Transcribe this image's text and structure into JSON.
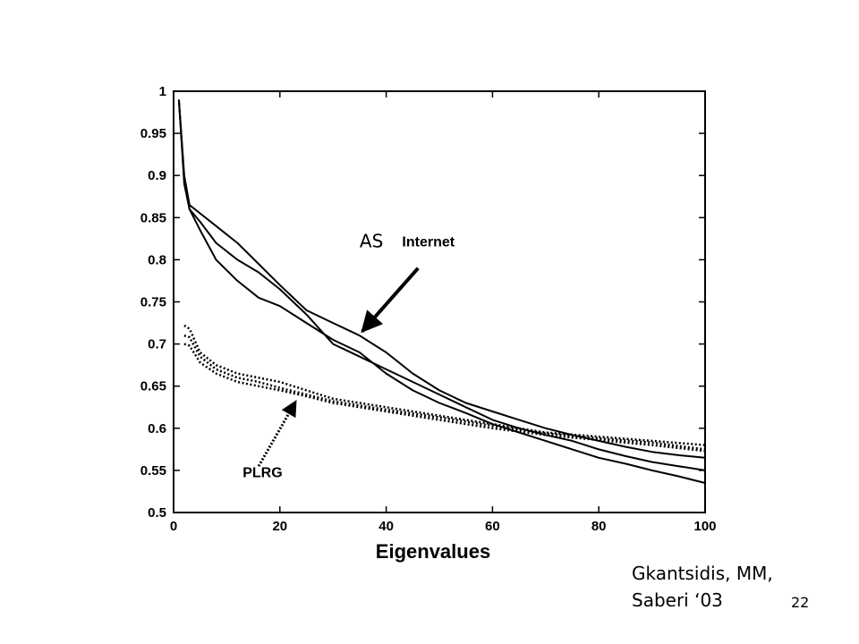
{
  "chart_data": {
    "type": "line",
    "title": "",
    "xlabel": "Eigenvalues",
    "ylabel": "",
    "xlim": [
      0,
      100
    ],
    "ylim": [
      0.5,
      1
    ],
    "x_ticks": [
      "0",
      "20",
      "40",
      "60",
      "80",
      "100"
    ],
    "y_ticks": [
      "0.5",
      "0.55",
      "0.6",
      "0.65",
      "0.7",
      "0.75",
      "0.8",
      "0.85",
      "0.9",
      "0.95",
      "1"
    ],
    "grid": false,
    "series": [
      {
        "group": "solid",
        "style": "solid",
        "x": [
          1,
          2,
          3,
          5,
          8,
          12,
          16,
          20,
          25,
          30,
          35,
          40,
          45,
          50,
          55,
          60,
          65,
          70,
          75,
          80,
          85,
          90,
          95,
          100
        ],
        "y": [
          0.99,
          0.9,
          0.865,
          0.855,
          0.84,
          0.82,
          0.795,
          0.77,
          0.74,
          0.725,
          0.71,
          0.69,
          0.665,
          0.645,
          0.63,
          0.62,
          0.61,
          0.6,
          0.592,
          0.585,
          0.578,
          0.572,
          0.568,
          0.565
        ]
      },
      {
        "group": "solid",
        "style": "solid",
        "x": [
          1,
          2,
          3,
          5,
          8,
          12,
          16,
          20,
          25,
          30,
          35,
          40,
          45,
          50,
          55,
          60,
          65,
          70,
          75,
          80,
          85,
          90,
          95,
          100
        ],
        "y": [
          0.99,
          0.89,
          0.86,
          0.845,
          0.82,
          0.8,
          0.785,
          0.765,
          0.735,
          0.7,
          0.685,
          0.67,
          0.655,
          0.64,
          0.625,
          0.61,
          0.6,
          0.592,
          0.585,
          0.575,
          0.567,
          0.56,
          0.555,
          0.55
        ]
      },
      {
        "group": "solid",
        "style": "solid",
        "x": [
          1,
          2,
          3,
          5,
          8,
          12,
          16,
          20,
          25,
          30,
          35,
          40,
          45,
          50,
          55,
          60,
          65,
          70,
          75,
          80,
          85,
          90,
          95,
          100
        ],
        "y": [
          0.99,
          0.895,
          0.86,
          0.835,
          0.8,
          0.775,
          0.755,
          0.745,
          0.725,
          0.705,
          0.69,
          0.665,
          0.645,
          0.63,
          0.618,
          0.605,
          0.595,
          0.585,
          0.575,
          0.565,
          0.558,
          0.55,
          0.543,
          0.535
        ]
      },
      {
        "group": "PLRG",
        "style": "dotted",
        "x": [
          2,
          3,
          5,
          8,
          12,
          16,
          20,
          25,
          30,
          40,
          50,
          60,
          70,
          80,
          90,
          100
        ],
        "y": [
          0.722,
          0.718,
          0.69,
          0.675,
          0.665,
          0.66,
          0.655,
          0.645,
          0.635,
          0.625,
          0.615,
          0.605,
          0.595,
          0.59,
          0.585,
          0.58
        ]
      },
      {
        "group": "PLRG",
        "style": "dotted",
        "x": [
          2,
          3,
          5,
          8,
          12,
          16,
          20,
          25,
          30,
          40,
          50,
          60,
          70,
          80,
          90,
          100
        ],
        "y": [
          0.71,
          0.708,
          0.685,
          0.67,
          0.66,
          0.655,
          0.648,
          0.64,
          0.632,
          0.622,
          0.613,
          0.603,
          0.594,
          0.588,
          0.583,
          0.575
        ]
      },
      {
        "group": "PLRG",
        "style": "dotted",
        "x": [
          2,
          3,
          5,
          8,
          12,
          16,
          20,
          25,
          30,
          40,
          50,
          60,
          70,
          80,
          90,
          100
        ],
        "y": [
          0.7,
          0.698,
          0.678,
          0.665,
          0.655,
          0.65,
          0.645,
          0.638,
          0.63,
          0.62,
          0.61,
          0.6,
          0.592,
          0.586,
          0.58,
          0.573
        ]
      }
    ],
    "annotations": [
      {
        "text": "AS",
        "x": 35,
        "y": 0.815
      },
      {
        "text": "Internet",
        "x": 43,
        "y": 0.816
      },
      {
        "text": "PLRG",
        "x": 13,
        "y": 0.542
      }
    ],
    "arrows": [
      {
        "from": [
          46,
          0.79
        ],
        "to": [
          35.5,
          0.715
        ],
        "style": "solid"
      },
      {
        "from": [
          16,
          0.555
        ],
        "to": [
          23,
          0.632
        ],
        "style": "dotted"
      }
    ]
  },
  "credit": {
    "line1": "Gkantsidis, MM,",
    "line2": "Saberi ‘03"
  },
  "page_number": "22"
}
